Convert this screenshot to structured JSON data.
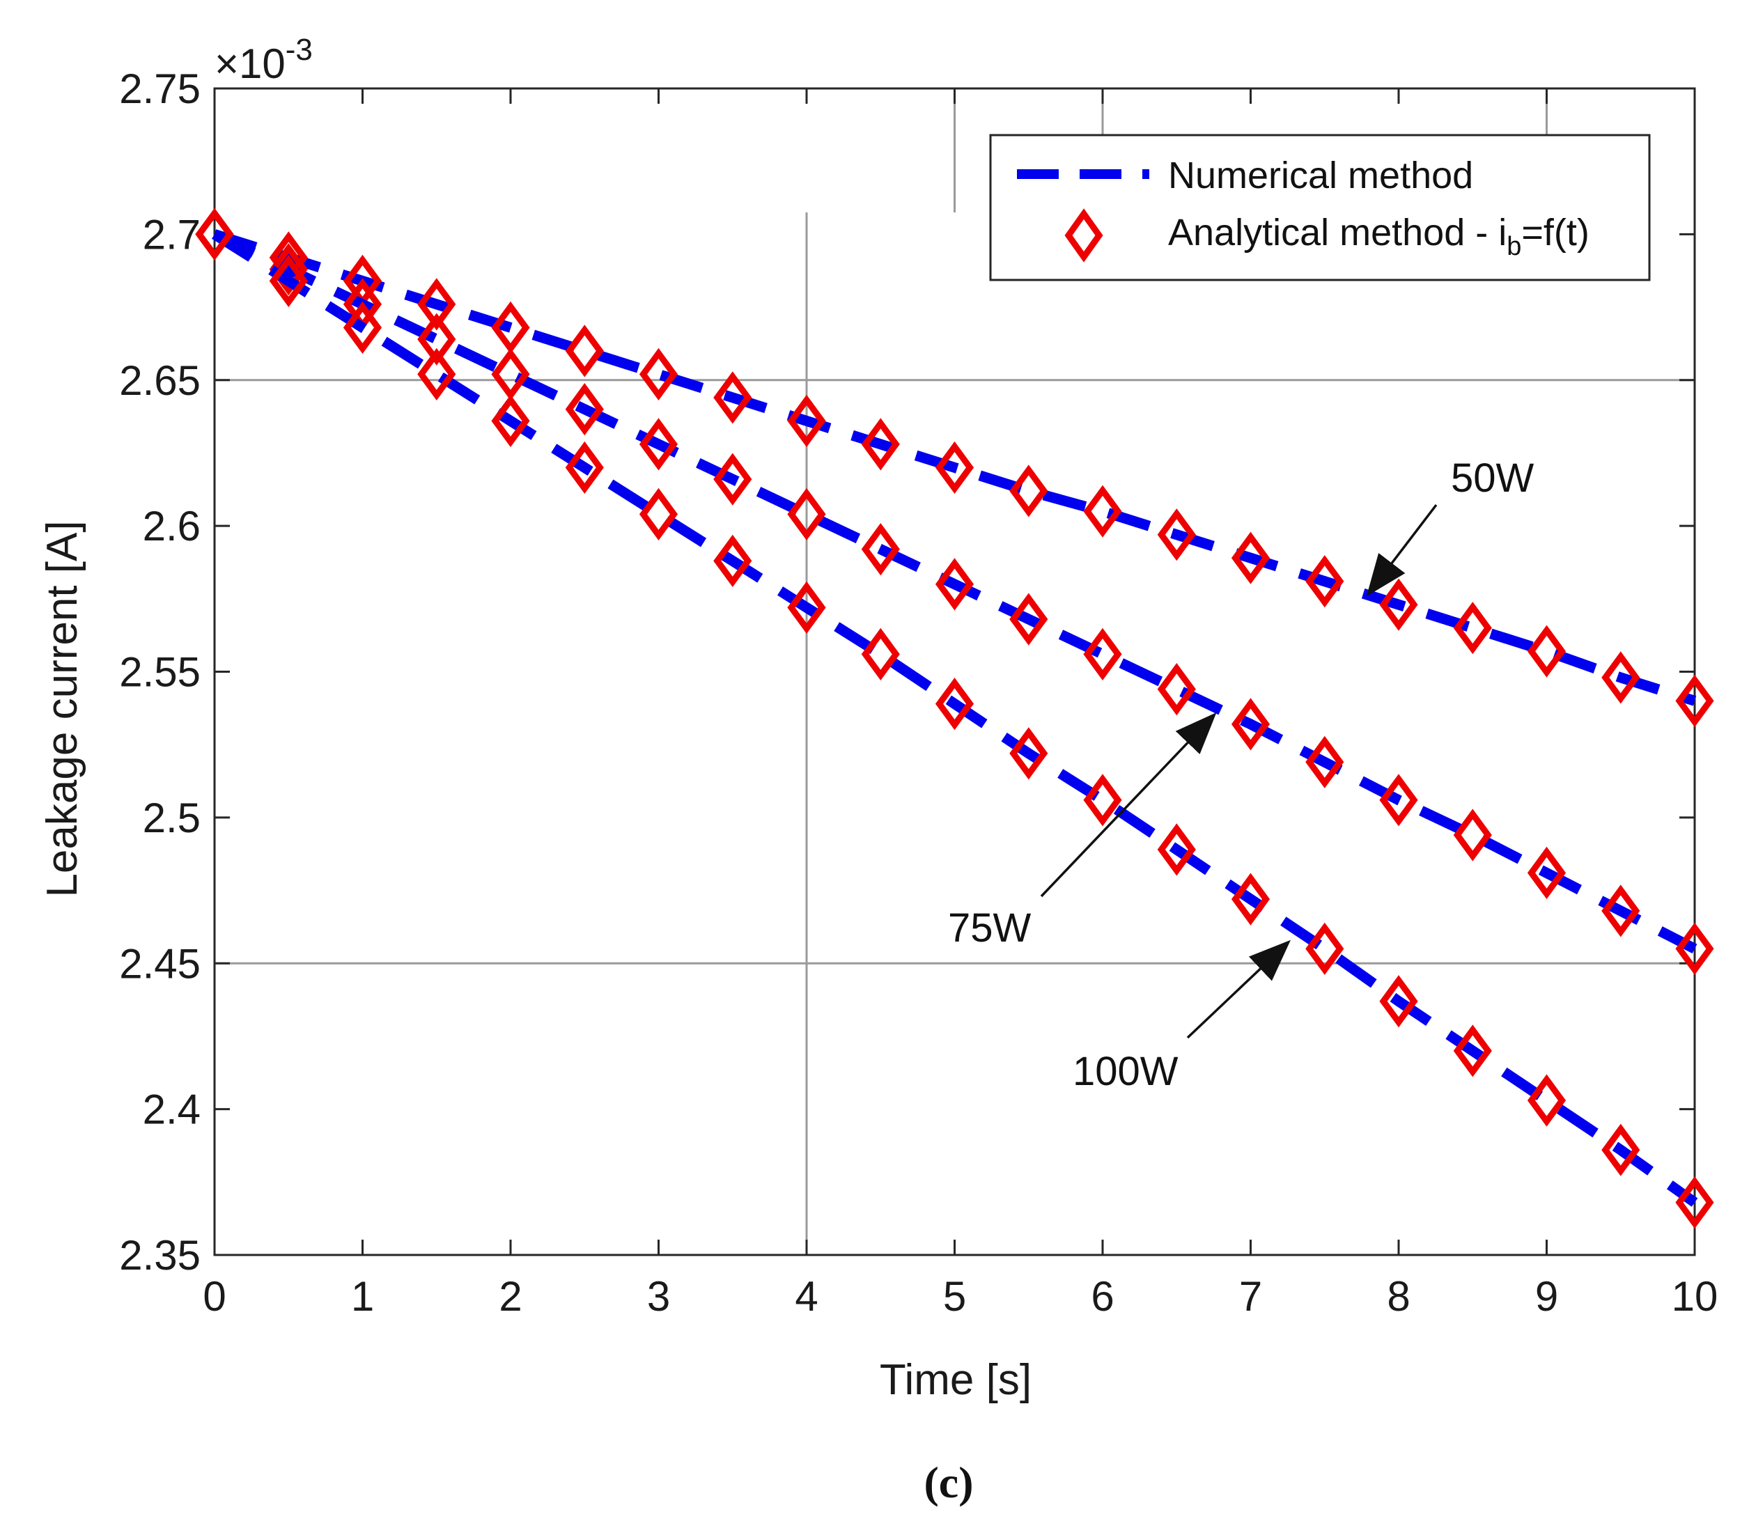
{
  "chart_data": {
    "type": "line",
    "xlabel": "Time [s]",
    "ylabel": "Leakage current [A]",
    "xlim": [
      0,
      10
    ],
    "ylim": [
      2.35,
      2.75
    ],
    "y_scale_label": "×10",
    "y_scale_exponent": "-3",
    "x_ticks": [
      0,
      1,
      2,
      3,
      4,
      5,
      6,
      7,
      8,
      9,
      10
    ],
    "x_tick_labels": [
      "0",
      "1",
      "2",
      "3",
      "4",
      "5",
      "6",
      "7",
      "8",
      "9",
      "10"
    ],
    "y_ticks": [
      2.35,
      2.4,
      2.45,
      2.5,
      2.55,
      2.6,
      2.65,
      2.7,
      2.75
    ],
    "y_tick_labels": [
      "2.35",
      "2.4",
      "2.45",
      "2.5",
      "2.55",
      "2.6",
      "2.65",
      "2.7",
      "2.75"
    ],
    "grid": {
      "vertical_at_x": [
        4
      ],
      "horizontal_at_y": [
        2.45,
        2.65
      ]
    },
    "legend": {
      "location": "top-right",
      "entries": [
        {
          "label": "Numerical method",
          "style": "dashed-line",
          "color": "#0000ee"
        },
        {
          "label_main": "Analytical method - i",
          "label_sub": "b",
          "label_tail": "=f(t)",
          "style": "diamond-marker",
          "color": "#ee0000"
        }
      ]
    },
    "x": [
      0,
      0.5,
      1,
      1.5,
      2,
      2.5,
      3,
      3.5,
      4,
      4.5,
      5,
      5.5,
      6,
      6.5,
      7,
      7.5,
      8,
      8.5,
      9,
      9.5,
      10
    ],
    "series": [
      {
        "name": "50W",
        "values": [
          2.7,
          2.692,
          2.684,
          2.676,
          2.668,
          2.66,
          2.652,
          2.644,
          2.636,
          2.628,
          2.62,
          2.612,
          2.605,
          2.597,
          2.589,
          2.581,
          2.573,
          2.565,
          2.557,
          2.548,
          2.54
        ]
      },
      {
        "name": "75W",
        "values": [
          2.7,
          2.688,
          2.676,
          2.664,
          2.652,
          2.64,
          2.628,
          2.616,
          2.604,
          2.592,
          2.58,
          2.568,
          2.556,
          2.544,
          2.532,
          2.519,
          2.506,
          2.494,
          2.481,
          2.468,
          2.455
        ]
      },
      {
        "name": "100W",
        "values": [
          2.7,
          2.684,
          2.668,
          2.652,
          2.636,
          2.62,
          2.604,
          2.588,
          2.572,
          2.556,
          2.539,
          2.522,
          2.506,
          2.489,
          2.472,
          2.455,
          2.437,
          2.42,
          2.403,
          2.386,
          2.368
        ]
      }
    ],
    "annotations": [
      {
        "text": "50W",
        "arrow_to": [
          7.8,
          2.577
        ]
      },
      {
        "text": "75W",
        "arrow_to": [
          6.75,
          2.535
        ]
      },
      {
        "text": "100W",
        "arrow_to": [
          7.25,
          2.457
        ]
      }
    ],
    "caption": "(c)",
    "colors": {
      "numerical": "#0000ee",
      "analytical": "#ee0000",
      "axis": "#262626",
      "grid": "#9a9a9a"
    }
  }
}
